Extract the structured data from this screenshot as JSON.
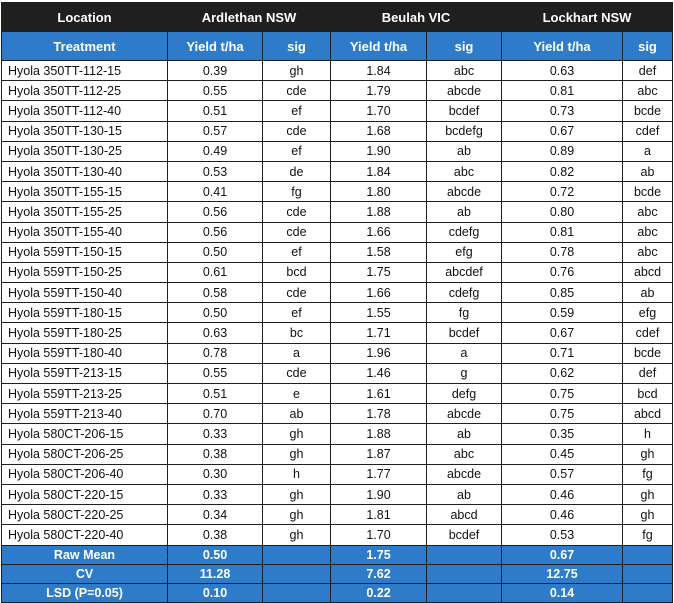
{
  "header": {
    "location_label": "Location",
    "sites": [
      "Ardlethan NSW",
      "Beulah VIC",
      "Lockhart NSW"
    ]
  },
  "subheader": {
    "treatment_label": "Treatment",
    "yield_label": "Yield t/ha",
    "sig_label": "sig"
  },
  "rows": [
    {
      "treatment": "Hyola 350TT-112-15",
      "values": [
        "0.39",
        "gh",
        "1.84",
        "abc",
        "0.63",
        "def"
      ]
    },
    {
      "treatment": "Hyola 350TT-112-25",
      "values": [
        "0.55",
        "cde",
        "1.79",
        "abcde",
        "0.81",
        "abc"
      ]
    },
    {
      "treatment": "Hyola 350TT-112-40",
      "values": [
        "0.51",
        "ef",
        "1.70",
        "bcdef",
        "0.73",
        "bcde"
      ]
    },
    {
      "treatment": "Hyola 350TT-130-15",
      "values": [
        "0.57",
        "cde",
        "1.68",
        "bcdefg",
        "0.67",
        "cdef"
      ]
    },
    {
      "treatment": "Hyola 350TT-130-25",
      "values": [
        "0.49",
        "ef",
        "1.90",
        "ab",
        "0.89",
        "a"
      ]
    },
    {
      "treatment": "Hyola 350TT-130-40",
      "values": [
        "0.53",
        "de",
        "1.84",
        "abc",
        "0.82",
        "ab"
      ]
    },
    {
      "treatment": "Hyola 350TT-155-15",
      "values": [
        "0.41",
        "fg",
        "1.80",
        "abcde",
        "0.72",
        "bcde"
      ]
    },
    {
      "treatment": "Hyola 350TT-155-25",
      "values": [
        "0.56",
        "cde",
        "1.88",
        "ab",
        "0.80",
        "abc"
      ]
    },
    {
      "treatment": "Hyola 350TT-155-40",
      "values": [
        "0.56",
        "cde",
        "1.66",
        "cdefg",
        "0.81",
        "abc"
      ]
    },
    {
      "treatment": "Hyola 559TT-150-15",
      "values": [
        "0.50",
        "ef",
        "1.58",
        "efg",
        "0.78",
        "abc"
      ]
    },
    {
      "treatment": "Hyola 559TT-150-25",
      "values": [
        "0.61",
        "bcd",
        "1.75",
        "abcdef",
        "0.76",
        "abcd"
      ]
    },
    {
      "treatment": "Hyola 559TT-150-40",
      "values": [
        "0.58",
        "cde",
        "1.66",
        "cdefg",
        "0.85",
        "ab"
      ]
    },
    {
      "treatment": "Hyola 559TT-180-15",
      "values": [
        "0.50",
        "ef",
        "1.55",
        "fg",
        "0.59",
        "efg"
      ]
    },
    {
      "treatment": "Hyola 559TT-180-25",
      "values": [
        "0.63",
        "bc",
        "1.71",
        "bcdef",
        "0.67",
        "cdef"
      ]
    },
    {
      "treatment": "Hyola 559TT-180-40",
      "values": [
        "0.78",
        "a",
        "1.96",
        "a",
        "0.71",
        "bcde"
      ]
    },
    {
      "treatment": "Hyola 559TT-213-15",
      "values": [
        "0.55",
        "cde",
        "1.46",
        "g",
        "0.62",
        "def"
      ]
    },
    {
      "treatment": "Hyola 559TT-213-25",
      "values": [
        "0.51",
        "e",
        "1.61",
        "defg",
        "0.75",
        "bcd"
      ]
    },
    {
      "treatment": "Hyola 559TT-213-40",
      "values": [
        "0.70",
        "ab",
        "1.78",
        "abcde",
        "0.75",
        "abcd"
      ]
    },
    {
      "treatment": "Hyola 580CT-206-15",
      "values": [
        "0.33",
        "gh",
        "1.88",
        "ab",
        "0.35",
        "h"
      ]
    },
    {
      "treatment": "Hyola 580CT-206-25",
      "values": [
        "0.38",
        "gh",
        "1.87",
        "abc",
        "0.45",
        "gh"
      ]
    },
    {
      "treatment": "Hyola 580CT-206-40",
      "values": [
        "0.30",
        "h",
        "1.77",
        "abcde",
        "0.57",
        "fg"
      ]
    },
    {
      "treatment": "Hyola 580CT-220-15",
      "values": [
        "0.33",
        "gh",
        "1.90",
        "ab",
        "0.46",
        "gh"
      ]
    },
    {
      "treatment": "Hyola 580CT-220-25",
      "values": [
        "0.34",
        "gh",
        "1.81",
        "abcd",
        "0.46",
        "gh"
      ]
    },
    {
      "treatment": "Hyola 580CT-220-40",
      "values": [
        "0.38",
        "gh",
        "1.70",
        "bcdef",
        "0.53",
        "fg"
      ]
    }
  ],
  "summary": [
    {
      "label": "Raw Mean",
      "values": [
        "0.50",
        "",
        "1.75",
        "",
        "0.67",
        ""
      ]
    },
    {
      "label": "CV",
      "values": [
        "11.28",
        "",
        "7.62",
        "",
        "12.75",
        ""
      ]
    },
    {
      "label": "LSD (P=0.05)",
      "values": [
        "0.10",
        "",
        "0.22",
        "",
        "0.14",
        ""
      ]
    }
  ]
}
